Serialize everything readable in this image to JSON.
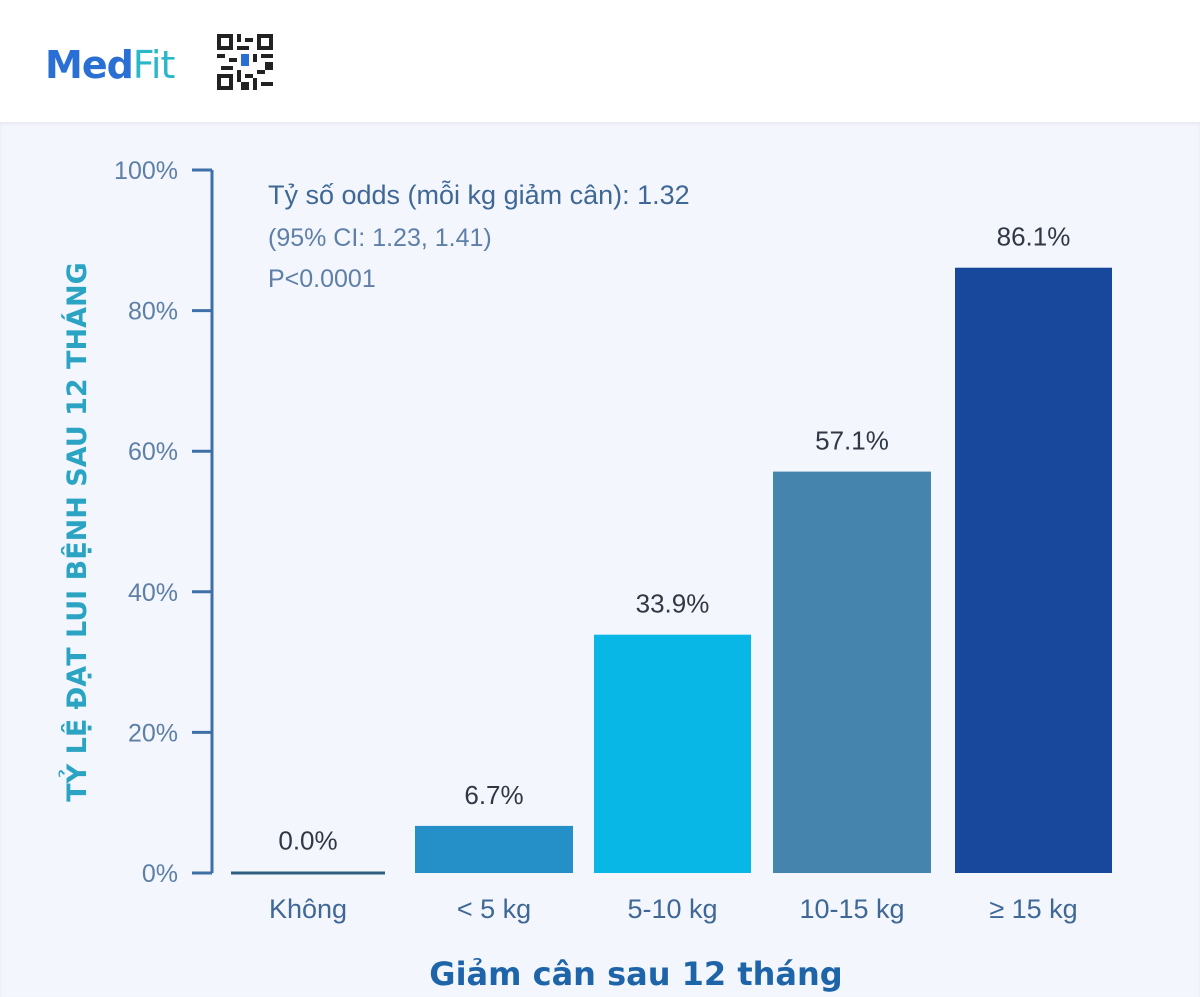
{
  "brand": {
    "logo_part1": "Med",
    "logo_part2": "Fit"
  },
  "colors": {
    "axis": "#3d6fa8",
    "zero_bar": "#2e5e80"
  },
  "chart_data": {
    "type": "bar",
    "categories": [
      "Không",
      "< 5 kg",
      "5-10 kg",
      "10-15 kg",
      "≥ 15 kg"
    ],
    "values": [
      0.0,
      6.7,
      33.9,
      57.1,
      86.1
    ],
    "value_labels": [
      "0.0%",
      "6.7%",
      "33.9%",
      "57.1%",
      "86.1%"
    ],
    "bar_colors": [
      "#2e5e80",
      "#2590c8",
      "#08b7e6",
      "#4585ad",
      "#17489c"
    ],
    "ylim": [
      0,
      100
    ],
    "yticks": [
      0,
      20,
      40,
      60,
      80,
      100
    ],
    "ytick_labels": [
      "0%",
      "20%",
      "40%",
      "60%",
      "80%",
      "100%"
    ],
    "xlabel": "Giảm cân sau 12 tháng",
    "ylabel": "TỶ LỆ ĐẠT LUI BỆNH SAU 12 THÁNG",
    "annotations": [
      "Tỷ số odds (mỗi kg giảm cân): 1.32",
      "(95% CI: 1.23, 1.41)",
      "P<0.0001"
    ],
    "grid": false,
    "legend": "none"
  }
}
